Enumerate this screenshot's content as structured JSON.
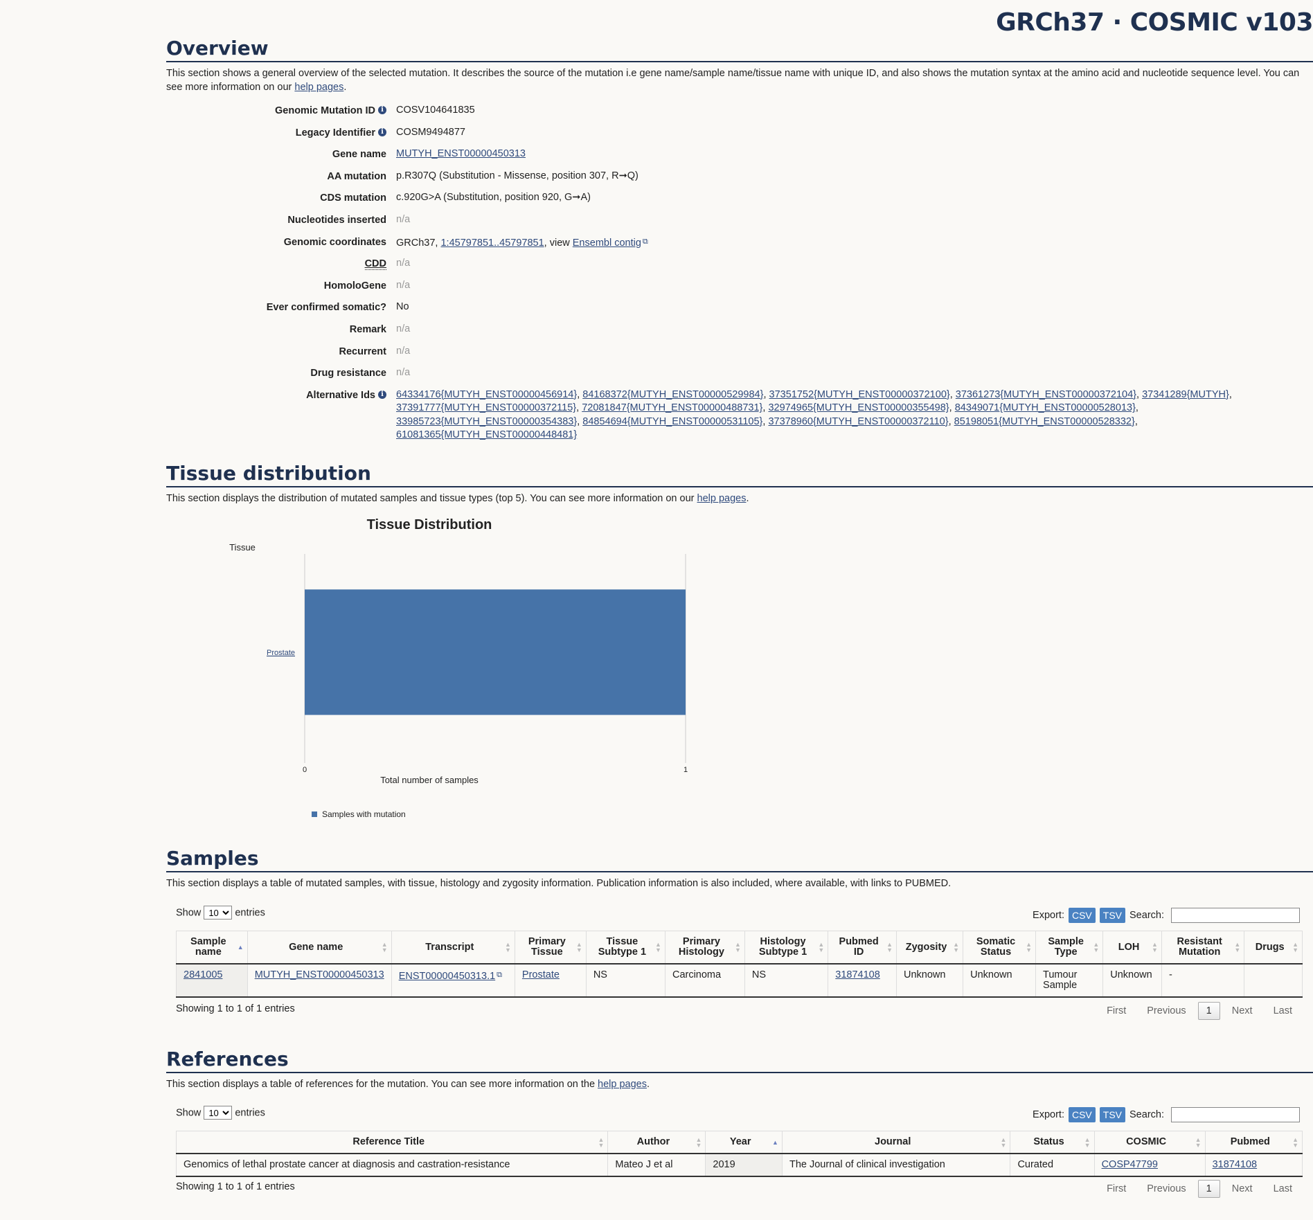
{
  "build_title": "GRCh37 · COSMIC v103",
  "overview": {
    "title": "Overview",
    "desc_prefix": "This section shows a general overview of the selected mutation. It describes the source of the mutation i.e gene name/sample name/tissue name with unique ID, and also shows the mutation syntax at the amino acid and nucleotide sequence level. You can see more information on our ",
    "help_link": "help pages",
    "desc_suffix": ".",
    "fields": {
      "genomic_mutation_id": {
        "label": "Genomic Mutation ID",
        "value": "COSV104641835"
      },
      "legacy_identifier": {
        "label": "Legacy Identifier",
        "value": "COSM9494877"
      },
      "gene_name": {
        "label": "Gene name",
        "value": "MUTYH_ENST00000450313"
      },
      "aa_mutation": {
        "label": "AA mutation",
        "value": "p.R307Q (Substitution - Missense, position 307, R➞Q)"
      },
      "cds_mutation": {
        "label": "CDS mutation",
        "value": "c.920G>A (Substitution, position 920, G➞A)"
      },
      "nucleotides_inserted": {
        "label": "Nucleotides inserted",
        "value": "n/a"
      },
      "genomic_coordinates": {
        "label": "Genomic coordinates",
        "prefix": "GRCh37, ",
        "coord_link": "1:45797851..45797851",
        "middle": ", view ",
        "ensembl_link": "Ensembl contig"
      },
      "cdd": {
        "label": "CDD",
        "value": "n/a"
      },
      "homologene": {
        "label": "HomoloGene",
        "value": "n/a"
      },
      "ever_confirmed_somatic": {
        "label": "Ever confirmed somatic?",
        "value": "No"
      },
      "remark": {
        "label": "Remark",
        "value": "n/a"
      },
      "recurrent": {
        "label": "Recurrent",
        "value": "n/a"
      },
      "drug_resistance": {
        "label": "Drug resistance",
        "value": "n/a"
      },
      "alternative_ids": {
        "label": "Alternative Ids",
        "values": [
          "64334176{MUTYH_ENST00000456914}",
          "84168372{MUTYH_ENST00000529984}",
          "37351752{MUTYH_ENST00000372100}",
          "37361273{MUTYH_ENST00000372104}",
          "37341289{MUTYH}",
          "37391777{MUTYH_ENST00000372115}",
          "72081847{MUTYH_ENST00000488731}",
          "32974965{MUTYH_ENST00000355498}",
          "84349071{MUTYH_ENST00000528013}",
          "33985723{MUTYH_ENST00000354383}",
          "84854694{MUTYH_ENST00000531105}",
          "37378960{MUTYH_ENST00000372110}",
          "85198051{MUTYH_ENST00000528332}",
          "61081365{MUTYH_ENST00000448481}"
        ]
      }
    }
  },
  "tissue": {
    "title": "Tissue distribution",
    "desc_prefix": "This section displays the distribution of mutated samples and tissue types (top 5). You can see more information on our ",
    "help_link": "help pages",
    "desc_suffix": "."
  },
  "chart_data": {
    "type": "bar",
    "orientation": "horizontal",
    "title": "Tissue Distribution",
    "ylabel": "Tissue",
    "xlabel": "Total number of samples",
    "categories": [
      "Prostate"
    ],
    "series": [
      {
        "name": "Samples with mutation",
        "values": [
          1
        ],
        "color": "#4673a8"
      }
    ],
    "xlim": [
      0,
      1
    ],
    "x_ticks": [
      "0",
      "1"
    ],
    "legend_position": "bottom"
  },
  "samples": {
    "title": "Samples",
    "desc": "This section displays a table of mutated samples, with tissue, histology and zygosity information. Publication information is also included, where available, with links to PUBMED.",
    "show_label": "Show",
    "entries_label": "entries",
    "page_size": "10",
    "export_label": "Export:",
    "csv": "CSV",
    "tsv": "TSV",
    "search_label": "Search:",
    "columns": [
      "Sample name",
      "Gene name",
      "Transcript",
      "Primary Tissue",
      "Tissue Subtype 1",
      "Primary Histology",
      "Histology Subtype 1",
      "Pubmed ID",
      "Zygosity",
      "Somatic Status",
      "Sample Type",
      "LOH",
      "Resistant Mutation",
      "Drugs"
    ],
    "rows": [
      [
        "2841005",
        "MUTYH_ENST00000450313",
        "ENST00000450313.1",
        "Prostate",
        "NS",
        "Carcinoma",
        "NS",
        "31874108",
        "Unknown",
        "Unknown",
        "Tumour Sample",
        "Unknown",
        "-",
        ""
      ]
    ],
    "showing": "Showing 1 to 1 of 1 entries",
    "pager": {
      "first": "First",
      "previous": "Previous",
      "current": "1",
      "next": "Next",
      "last": "Last"
    }
  },
  "references": {
    "title": "References",
    "desc_prefix": "This section displays a table of references for the mutation. You can see more information on the ",
    "help_link": "help pages",
    "desc_suffix": ".",
    "show_label": "Show",
    "entries_label": "entries",
    "page_size": "10",
    "export_label": "Export:",
    "csv": "CSV",
    "tsv": "TSV",
    "search_label": "Search:",
    "columns": [
      "Reference Title",
      "Author",
      "Year",
      "Journal",
      "Status",
      "COSMIC",
      "Pubmed"
    ],
    "rows": [
      [
        "Genomics of lethal prostate cancer at diagnosis and castration-resistance",
        "Mateo J et al",
        "2019",
        "The Journal of clinical investigation",
        "Curated",
        "COSP47799",
        "31874108"
      ]
    ],
    "showing": "Showing 1 to 1 of 1 entries",
    "pager": {
      "first": "First",
      "previous": "Previous",
      "current": "1",
      "next": "Next",
      "last": "Last"
    }
  }
}
